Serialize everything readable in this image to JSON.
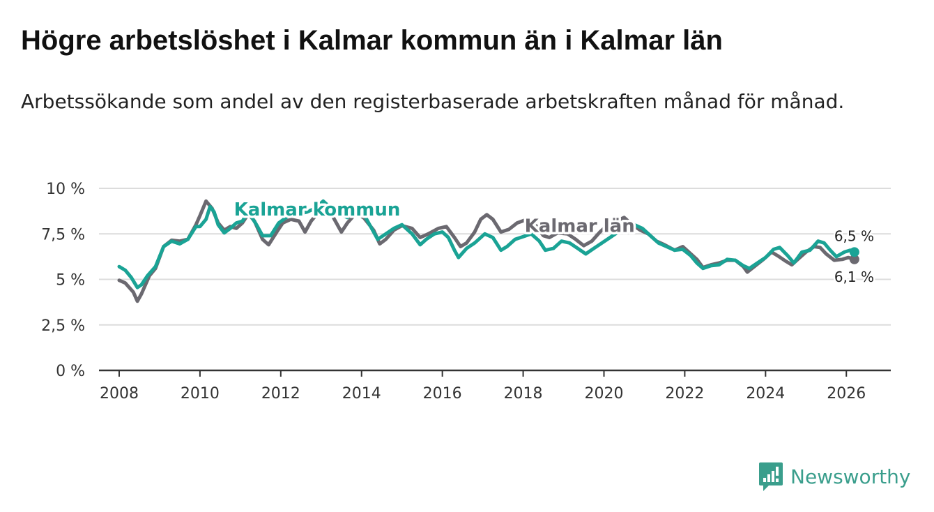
{
  "title": "Högre arbetslöshet i Kalmar kommun än i Kalmar län",
  "subtitle": "Arbetssökande som andel av den registerbaserade arbetskraften månad för månad.",
  "brand": {
    "name": "Newsworthy",
    "color": "#3a9e8c",
    "icon": "newsworthy-logo-icon"
  },
  "colors": {
    "kommun": "#1aa395",
    "lan": "#6b6970",
    "grid": "#dcdcdc",
    "axis": "#333333"
  },
  "chart_data": {
    "type": "line",
    "title": "Högre arbetslöshet i Kalmar kommun än i Kalmar län",
    "xlabel": "",
    "ylabel": "",
    "xlim": [
      2007.5,
      2027.1
    ],
    "ylim": [
      0,
      10
    ],
    "x_ticks": [
      2008,
      2010,
      2012,
      2014,
      2016,
      2018,
      2020,
      2022,
      2024,
      2026
    ],
    "x_tick_labels": [
      "2008",
      "2010",
      "2012",
      "2014",
      "2016",
      "2018",
      "2020",
      "2022",
      "2024",
      "2026"
    ],
    "y_ticks": [
      0,
      2.5,
      5,
      7.5,
      10
    ],
    "y_tick_labels": [
      "0 %",
      "2,5 %",
      "5 %",
      "7,5 %",
      "10 %"
    ],
    "grid": true,
    "series": [
      {
        "name": "Kalmar län",
        "color": "#6b6970",
        "label_x": 2019.4,
        "label_y": 7.6,
        "end_label": "6,1 %",
        "points": [
          [
            2008.0,
            4.95
          ],
          [
            2008.15,
            4.8
          ],
          [
            2008.35,
            4.3
          ],
          [
            2008.45,
            3.8
          ],
          [
            2008.55,
            4.2
          ],
          [
            2008.75,
            5.2
          ],
          [
            2008.9,
            5.6
          ],
          [
            2009.1,
            6.8
          ],
          [
            2009.3,
            7.15
          ],
          [
            2009.5,
            7.1
          ],
          [
            2009.7,
            7.2
          ],
          [
            2009.9,
            8.0
          ],
          [
            2010.0,
            8.5
          ],
          [
            2010.15,
            9.3
          ],
          [
            2010.3,
            8.9
          ],
          [
            2010.45,
            8.1
          ],
          [
            2010.6,
            7.7
          ],
          [
            2010.75,
            7.9
          ],
          [
            2010.9,
            7.8
          ],
          [
            2011.05,
            8.1
          ],
          [
            2011.2,
            8.6
          ],
          [
            2011.35,
            8.2
          ],
          [
            2011.55,
            7.2
          ],
          [
            2011.7,
            6.9
          ],
          [
            2011.9,
            7.6
          ],
          [
            2012.05,
            8.1
          ],
          [
            2012.25,
            8.3
          ],
          [
            2012.45,
            8.2
          ],
          [
            2012.6,
            7.6
          ],
          [
            2012.75,
            8.2
          ],
          [
            2013.05,
            9.0
          ],
          [
            2013.25,
            8.6
          ],
          [
            2013.5,
            7.6
          ],
          [
            2013.65,
            8.1
          ],
          [
            2013.85,
            8.6
          ],
          [
            2014.05,
            8.4
          ],
          [
            2014.3,
            7.7
          ],
          [
            2014.45,
            6.95
          ],
          [
            2014.6,
            7.2
          ],
          [
            2014.8,
            7.7
          ],
          [
            2015.0,
            7.95
          ],
          [
            2015.25,
            7.8
          ],
          [
            2015.45,
            7.3
          ],
          [
            2015.65,
            7.5
          ],
          [
            2015.9,
            7.8
          ],
          [
            2016.1,
            7.9
          ],
          [
            2016.3,
            7.3
          ],
          [
            2016.45,
            6.8
          ],
          [
            2016.6,
            7.0
          ],
          [
            2016.8,
            7.6
          ],
          [
            2016.95,
            8.3
          ],
          [
            2017.1,
            8.55
          ],
          [
            2017.25,
            8.3
          ],
          [
            2017.45,
            7.6
          ],
          [
            2017.65,
            7.75
          ],
          [
            2017.85,
            8.1
          ],
          [
            2018.1,
            8.3
          ],
          [
            2018.3,
            8.0
          ],
          [
            2018.5,
            7.4
          ],
          [
            2018.65,
            7.3
          ],
          [
            2018.85,
            7.55
          ],
          [
            2019.1,
            7.5
          ],
          [
            2019.3,
            7.2
          ],
          [
            2019.5,
            6.85
          ],
          [
            2019.7,
            7.1
          ],
          [
            2019.9,
            7.6
          ],
          [
            2020.1,
            8.0
          ],
          [
            2020.3,
            8.2
          ],
          [
            2020.5,
            8.4
          ],
          [
            2020.7,
            8.0
          ],
          [
            2020.9,
            7.7
          ],
          [
            2021.1,
            7.5
          ],
          [
            2021.3,
            7.1
          ],
          [
            2021.5,
            6.9
          ],
          [
            2021.75,
            6.6
          ],
          [
            2021.95,
            6.8
          ],
          [
            2022.1,
            6.5
          ],
          [
            2022.3,
            6.1
          ],
          [
            2022.45,
            5.65
          ],
          [
            2022.65,
            5.8
          ],
          [
            2022.85,
            5.9
          ],
          [
            2023.05,
            6.05
          ],
          [
            2023.25,
            6.05
          ],
          [
            2023.45,
            5.7
          ],
          [
            2023.55,
            5.4
          ],
          [
            2023.75,
            5.75
          ],
          [
            2023.95,
            6.1
          ],
          [
            2024.15,
            6.5
          ],
          [
            2024.3,
            6.3
          ],
          [
            2024.5,
            6.0
          ],
          [
            2024.65,
            5.8
          ],
          [
            2024.85,
            6.2
          ],
          [
            2025.0,
            6.5
          ],
          [
            2025.2,
            6.8
          ],
          [
            2025.35,
            6.75
          ],
          [
            2025.5,
            6.4
          ],
          [
            2025.7,
            6.05
          ],
          [
            2025.9,
            6.1
          ],
          [
            2026.05,
            6.2
          ],
          [
            2026.2,
            6.1
          ]
        ]
      },
      {
        "name": "Kalmar kommun",
        "color": "#1aa395",
        "label_x": 2012.9,
        "label_y": 8.5,
        "end_label": "6,5 %",
        "points": [
          [
            2008.0,
            5.7
          ],
          [
            2008.15,
            5.5
          ],
          [
            2008.3,
            5.1
          ],
          [
            2008.45,
            4.55
          ],
          [
            2008.55,
            4.7
          ],
          [
            2008.7,
            5.2
          ],
          [
            2008.9,
            5.7
          ],
          [
            2009.1,
            6.8
          ],
          [
            2009.3,
            7.1
          ],
          [
            2009.5,
            6.95
          ],
          [
            2009.7,
            7.2
          ],
          [
            2009.9,
            7.9
          ],
          [
            2010.0,
            7.9
          ],
          [
            2010.15,
            8.3
          ],
          [
            2010.25,
            9.0
          ],
          [
            2010.35,
            8.7
          ],
          [
            2010.45,
            8.0
          ],
          [
            2010.6,
            7.55
          ],
          [
            2010.75,
            7.8
          ],
          [
            2010.9,
            8.1
          ],
          [
            2011.05,
            8.2
          ],
          [
            2011.2,
            8.7
          ],
          [
            2011.4,
            8.0
          ],
          [
            2011.55,
            7.4
          ],
          [
            2011.75,
            7.4
          ],
          [
            2011.95,
            8.1
          ],
          [
            2012.2,
            8.5
          ],
          [
            2012.45,
            8.6
          ],
          [
            2012.65,
            8.7
          ],
          [
            2012.85,
            8.9
          ],
          [
            2013.05,
            9.3
          ],
          [
            2013.25,
            8.9
          ],
          [
            2013.45,
            8.6
          ],
          [
            2013.65,
            8.4
          ],
          [
            2013.85,
            8.7
          ],
          [
            2014.05,
            8.6
          ],
          [
            2014.2,
            8.0
          ],
          [
            2014.4,
            7.2
          ],
          [
            2014.6,
            7.5
          ],
          [
            2014.8,
            7.8
          ],
          [
            2015.0,
            8.0
          ],
          [
            2015.25,
            7.5
          ],
          [
            2015.45,
            6.9
          ],
          [
            2015.6,
            7.2
          ],
          [
            2015.8,
            7.5
          ],
          [
            2016.0,
            7.6
          ],
          [
            2016.15,
            7.3
          ],
          [
            2016.3,
            6.6
          ],
          [
            2016.4,
            6.2
          ],
          [
            2016.6,
            6.7
          ],
          [
            2016.8,
            7.0
          ],
          [
            2017.05,
            7.5
          ],
          [
            2017.25,
            7.3
          ],
          [
            2017.45,
            6.6
          ],
          [
            2017.6,
            6.8
          ],
          [
            2017.8,
            7.2
          ],
          [
            2018.0,
            7.35
          ],
          [
            2018.2,
            7.5
          ],
          [
            2018.4,
            7.1
          ],
          [
            2018.55,
            6.6
          ],
          [
            2018.75,
            6.7
          ],
          [
            2018.95,
            7.1
          ],
          [
            2019.15,
            7.0
          ],
          [
            2019.35,
            6.7
          ],
          [
            2019.55,
            6.4
          ],
          [
            2019.75,
            6.7
          ],
          [
            2019.95,
            7.0
          ],
          [
            2020.15,
            7.3
          ],
          [
            2020.35,
            7.6
          ],
          [
            2020.55,
            7.9
          ],
          [
            2020.75,
            8.0
          ],
          [
            2020.95,
            7.8
          ],
          [
            2021.15,
            7.4
          ],
          [
            2021.35,
            7.0
          ],
          [
            2021.55,
            6.8
          ],
          [
            2021.75,
            6.6
          ],
          [
            2021.95,
            6.65
          ],
          [
            2022.15,
            6.3
          ],
          [
            2022.3,
            5.9
          ],
          [
            2022.45,
            5.6
          ],
          [
            2022.65,
            5.75
          ],
          [
            2022.85,
            5.8
          ],
          [
            2023.05,
            6.1
          ],
          [
            2023.25,
            6.05
          ],
          [
            2023.45,
            5.75
          ],
          [
            2023.6,
            5.6
          ],
          [
            2023.8,
            5.9
          ],
          [
            2024.0,
            6.2
          ],
          [
            2024.2,
            6.65
          ],
          [
            2024.35,
            6.75
          ],
          [
            2024.55,
            6.3
          ],
          [
            2024.7,
            5.9
          ],
          [
            2024.9,
            6.5
          ],
          [
            2025.1,
            6.6
          ],
          [
            2025.3,
            7.1
          ],
          [
            2025.45,
            7.0
          ],
          [
            2025.6,
            6.6
          ],
          [
            2025.75,
            6.25
          ],
          [
            2025.95,
            6.5
          ],
          [
            2026.1,
            6.6
          ],
          [
            2026.2,
            6.5
          ]
        ]
      }
    ]
  }
}
